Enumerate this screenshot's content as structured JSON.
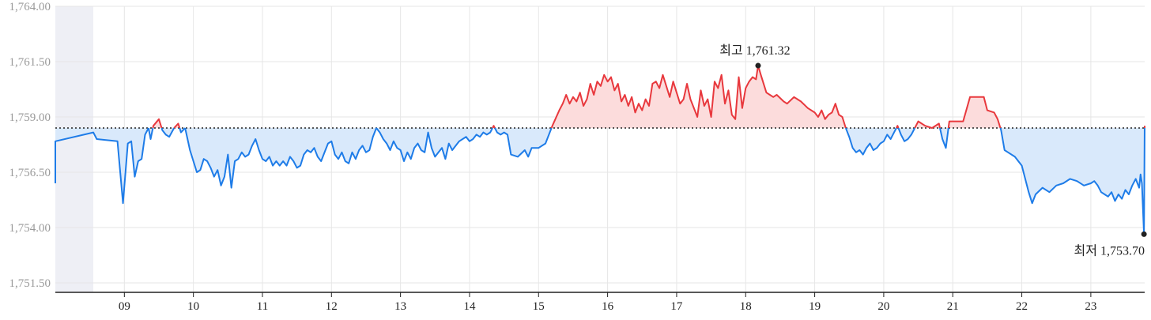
{
  "chart_data": {
    "type": "line",
    "title": "",
    "xlabel": "",
    "ylabel": "",
    "ylim": [
      1751.5,
      1764.0
    ],
    "y_ticks": [
      1764.0,
      1761.5,
      1759.0,
      1756.5,
      1754.0,
      1751.5
    ],
    "y_tick_labels": [
      "1,764.00",
      "1,761.50",
      "1,759.00",
      "1,756.50",
      "1,754.00",
      "1,751.50"
    ],
    "x_ticks": [
      "09",
      "10",
      "11",
      "12",
      "13",
      "14",
      "15",
      "16",
      "17",
      "18",
      "19",
      "20",
      "21",
      "22",
      "23"
    ],
    "grid": true,
    "baseline": 1758.5,
    "colors": {
      "above": "#e8383d",
      "below": "#1e7ce8",
      "above_fill": "#fcdcdc",
      "below_fill": "#d9e9fb",
      "pre_market_shade": "#eeeff5"
    },
    "annotations": {
      "high": {
        "label": "최고 1,761.32",
        "x": 18.18,
        "y": 1761.32
      },
      "low": {
        "label": "최저 1,753.70",
        "x": 23.77,
        "y": 1753.7
      }
    },
    "series": [
      {
        "values": [
          [
            8.0,
            1756.0
          ],
          [
            8.0,
            1757.9
          ],
          [
            8.55,
            1758.3
          ],
          [
            8.6,
            1758.0
          ],
          [
            8.9,
            1757.9
          ],
          [
            8.98,
            1755.1
          ],
          [
            9.05,
            1757.8
          ],
          [
            9.1,
            1757.9
          ],
          [
            9.15,
            1756.3
          ],
          [
            9.2,
            1757.0
          ],
          [
            9.25,
            1757.1
          ],
          [
            9.3,
            1758.2
          ],
          [
            9.35,
            1758.5
          ],
          [
            9.38,
            1758.0
          ],
          [
            9.42,
            1758.6
          ],
          [
            9.5,
            1758.9
          ],
          [
            9.55,
            1758.4
          ],
          [
            9.6,
            1758.2
          ],
          [
            9.65,
            1758.1
          ],
          [
            9.72,
            1758.5
          ],
          [
            9.78,
            1758.7
          ],
          [
            9.82,
            1758.3
          ],
          [
            9.88,
            1758.5
          ],
          [
            9.95,
            1757.5
          ],
          [
            10.0,
            1757.0
          ],
          [
            10.05,
            1756.5
          ],
          [
            10.1,
            1756.6
          ],
          [
            10.15,
            1757.1
          ],
          [
            10.2,
            1757.0
          ],
          [
            10.25,
            1756.7
          ],
          [
            10.3,
            1756.3
          ],
          [
            10.35,
            1756.6
          ],
          [
            10.4,
            1755.9
          ],
          [
            10.45,
            1756.3
          ],
          [
            10.5,
            1757.3
          ],
          [
            10.55,
            1755.8
          ],
          [
            10.6,
            1757.0
          ],
          [
            10.65,
            1757.1
          ],
          [
            10.7,
            1757.4
          ],
          [
            10.75,
            1757.2
          ],
          [
            10.8,
            1757.3
          ],
          [
            10.85,
            1757.7
          ],
          [
            10.9,
            1758.0
          ],
          [
            10.95,
            1757.5
          ],
          [
            11.0,
            1757.1
          ],
          [
            11.05,
            1757.0
          ],
          [
            11.1,
            1757.2
          ],
          [
            11.15,
            1756.8
          ],
          [
            11.2,
            1757.0
          ],
          [
            11.25,
            1756.8
          ],
          [
            11.3,
            1757.0
          ],
          [
            11.35,
            1756.8
          ],
          [
            11.4,
            1757.2
          ],
          [
            11.45,
            1757.0
          ],
          [
            11.5,
            1756.7
          ],
          [
            11.55,
            1756.8
          ],
          [
            11.6,
            1757.3
          ],
          [
            11.65,
            1757.5
          ],
          [
            11.7,
            1757.4
          ],
          [
            11.75,
            1757.6
          ],
          [
            11.8,
            1757.2
          ],
          [
            11.85,
            1757.0
          ],
          [
            11.9,
            1757.4
          ],
          [
            11.95,
            1757.8
          ],
          [
            12.0,
            1757.9
          ],
          [
            12.05,
            1757.3
          ],
          [
            12.1,
            1757.1
          ],
          [
            12.15,
            1757.4
          ],
          [
            12.2,
            1757.0
          ],
          [
            12.25,
            1756.9
          ],
          [
            12.3,
            1757.4
          ],
          [
            12.35,
            1757.1
          ],
          [
            12.4,
            1757.5
          ],
          [
            12.45,
            1757.7
          ],
          [
            12.5,
            1757.4
          ],
          [
            12.55,
            1757.5
          ],
          [
            12.6,
            1758.1
          ],
          [
            12.65,
            1758.5
          ],
          [
            12.7,
            1758.3
          ],
          [
            12.75,
            1758.0
          ],
          [
            12.8,
            1757.8
          ],
          [
            12.85,
            1757.5
          ],
          [
            12.9,
            1757.9
          ],
          [
            12.95,
            1757.6
          ],
          [
            13.0,
            1757.5
          ],
          [
            13.05,
            1757.0
          ],
          [
            13.1,
            1757.4
          ],
          [
            13.15,
            1757.1
          ],
          [
            13.2,
            1757.6
          ],
          [
            13.25,
            1757.8
          ],
          [
            13.3,
            1757.5
          ],
          [
            13.35,
            1757.4
          ],
          [
            13.4,
            1758.3
          ],
          [
            13.45,
            1757.6
          ],
          [
            13.5,
            1757.2
          ],
          [
            13.55,
            1757.4
          ],
          [
            13.6,
            1757.6
          ],
          [
            13.65,
            1757.1
          ],
          [
            13.7,
            1757.8
          ],
          [
            13.75,
            1757.5
          ],
          [
            13.8,
            1757.7
          ],
          [
            13.85,
            1757.9
          ],
          [
            13.9,
            1758.0
          ],
          [
            13.95,
            1758.1
          ],
          [
            14.0,
            1757.9
          ],
          [
            14.05,
            1758.0
          ],
          [
            14.1,
            1758.2
          ],
          [
            14.15,
            1758.1
          ],
          [
            14.2,
            1758.3
          ],
          [
            14.25,
            1758.2
          ],
          [
            14.3,
            1758.3
          ],
          [
            14.35,
            1758.6
          ],
          [
            14.4,
            1758.3
          ],
          [
            14.45,
            1758.2
          ],
          [
            14.5,
            1758.3
          ],
          [
            14.55,
            1758.2
          ],
          [
            14.6,
            1757.3
          ],
          [
            14.7,
            1757.2
          ],
          [
            14.8,
            1757.5
          ],
          [
            14.85,
            1757.2
          ],
          [
            14.9,
            1757.6
          ],
          [
            15.0,
            1757.6
          ],
          [
            15.1,
            1757.8
          ],
          [
            15.15,
            1758.2
          ],
          [
            15.2,
            1758.6
          ],
          [
            15.3,
            1759.3
          ],
          [
            15.35,
            1759.6
          ],
          [
            15.4,
            1760.0
          ],
          [
            15.45,
            1759.6
          ],
          [
            15.5,
            1759.9
          ],
          [
            15.55,
            1759.7
          ],
          [
            15.6,
            1760.1
          ],
          [
            15.65,
            1759.5
          ],
          [
            15.7,
            1759.8
          ],
          [
            15.75,
            1760.5
          ],
          [
            15.8,
            1760.0
          ],
          [
            15.85,
            1760.6
          ],
          [
            15.9,
            1760.4
          ],
          [
            15.95,
            1760.9
          ],
          [
            16.0,
            1760.6
          ],
          [
            16.05,
            1760.8
          ],
          [
            16.1,
            1760.2
          ],
          [
            16.15,
            1760.5
          ],
          [
            16.2,
            1759.7
          ],
          [
            16.25,
            1760.0
          ],
          [
            16.3,
            1759.5
          ],
          [
            16.35,
            1759.9
          ],
          [
            16.4,
            1759.2
          ],
          [
            16.45,
            1759.6
          ],
          [
            16.5,
            1759.3
          ],
          [
            16.55,
            1759.8
          ],
          [
            16.6,
            1759.5
          ],
          [
            16.65,
            1760.5
          ],
          [
            16.7,
            1760.6
          ],
          [
            16.75,
            1760.3
          ],
          [
            16.8,
            1760.9
          ],
          [
            16.85,
            1760.4
          ],
          [
            16.9,
            1759.9
          ],
          [
            16.95,
            1760.6
          ],
          [
            17.0,
            1760.1
          ],
          [
            17.05,
            1759.6
          ],
          [
            17.1,
            1759.8
          ],
          [
            17.15,
            1760.5
          ],
          [
            17.2,
            1759.8
          ],
          [
            17.25,
            1759.4
          ],
          [
            17.3,
            1759.0
          ],
          [
            17.35,
            1760.2
          ],
          [
            17.4,
            1759.5
          ],
          [
            17.45,
            1759.8
          ],
          [
            17.5,
            1759.0
          ],
          [
            17.55,
            1760.6
          ],
          [
            17.6,
            1760.3
          ],
          [
            17.65,
            1760.9
          ],
          [
            17.7,
            1759.6
          ],
          [
            17.75,
            1760.2
          ],
          [
            17.8,
            1759.1
          ],
          [
            17.85,
            1758.9
          ],
          [
            17.9,
            1760.8
          ],
          [
            17.95,
            1759.4
          ],
          [
            18.0,
            1760.3
          ],
          [
            18.05,
            1760.6
          ],
          [
            18.1,
            1760.8
          ],
          [
            18.15,
            1760.7
          ],
          [
            18.18,
            1761.32
          ],
          [
            18.22,
            1760.9
          ],
          [
            18.3,
            1760.1
          ],
          [
            18.35,
            1760.0
          ],
          [
            18.4,
            1759.9
          ],
          [
            18.45,
            1760.0
          ],
          [
            18.55,
            1759.7
          ],
          [
            18.6,
            1759.6
          ],
          [
            18.7,
            1759.9
          ],
          [
            18.8,
            1759.7
          ],
          [
            18.9,
            1759.4
          ],
          [
            19.0,
            1759.2
          ],
          [
            19.05,
            1759.0
          ],
          [
            19.1,
            1759.3
          ],
          [
            19.15,
            1758.9
          ],
          [
            19.2,
            1759.1
          ],
          [
            19.25,
            1759.2
          ],
          [
            19.3,
            1759.6
          ],
          [
            19.35,
            1759.1
          ],
          [
            19.4,
            1759.0
          ],
          [
            19.45,
            1758.5
          ],
          [
            19.5,
            1758.1
          ],
          [
            19.55,
            1757.6
          ],
          [
            19.6,
            1757.4
          ],
          [
            19.65,
            1757.5
          ],
          [
            19.7,
            1757.3
          ],
          [
            19.75,
            1757.6
          ],
          [
            19.8,
            1757.8
          ],
          [
            19.85,
            1757.5
          ],
          [
            19.9,
            1757.6
          ],
          [
            19.95,
            1757.8
          ],
          [
            20.0,
            1757.9
          ],
          [
            20.05,
            1758.2
          ],
          [
            20.1,
            1758.0
          ],
          [
            20.15,
            1758.3
          ],
          [
            20.2,
            1758.6
          ],
          [
            20.25,
            1758.2
          ],
          [
            20.3,
            1757.9
          ],
          [
            20.35,
            1758.0
          ],
          [
            20.4,
            1758.2
          ],
          [
            20.45,
            1758.5
          ],
          [
            20.5,
            1758.8
          ],
          [
            20.6,
            1758.6
          ],
          [
            20.7,
            1758.5
          ],
          [
            20.8,
            1758.7
          ],
          [
            20.85,
            1758.0
          ],
          [
            20.9,
            1757.6
          ],
          [
            20.95,
            1758.8
          ],
          [
            21.0,
            1758.8
          ],
          [
            21.15,
            1758.8
          ],
          [
            21.25,
            1759.9
          ],
          [
            21.35,
            1759.9
          ],
          [
            21.45,
            1759.9
          ],
          [
            21.5,
            1759.3
          ],
          [
            21.6,
            1759.2
          ],
          [
            21.65,
            1758.9
          ],
          [
            21.7,
            1758.4
          ],
          [
            21.75,
            1757.5
          ],
          [
            21.8,
            1757.4
          ],
          [
            21.9,
            1757.2
          ],
          [
            22.0,
            1756.8
          ],
          [
            22.1,
            1755.6
          ],
          [
            22.15,
            1755.1
          ],
          [
            22.2,
            1755.5
          ],
          [
            22.3,
            1755.8
          ],
          [
            22.4,
            1755.6
          ],
          [
            22.5,
            1755.9
          ],
          [
            22.6,
            1756.0
          ],
          [
            22.7,
            1756.2
          ],
          [
            22.8,
            1756.1
          ],
          [
            22.9,
            1755.9
          ],
          [
            23.0,
            1756.0
          ],
          [
            23.05,
            1756.1
          ],
          [
            23.1,
            1755.9
          ],
          [
            23.15,
            1755.6
          ],
          [
            23.2,
            1755.5
          ],
          [
            23.25,
            1755.4
          ],
          [
            23.3,
            1755.6
          ],
          [
            23.35,
            1755.2
          ],
          [
            23.4,
            1755.5
          ],
          [
            23.45,
            1755.3
          ],
          [
            23.5,
            1755.7
          ],
          [
            23.55,
            1755.5
          ],
          [
            23.6,
            1755.9
          ],
          [
            23.65,
            1756.2
          ],
          [
            23.7,
            1755.8
          ],
          [
            23.72,
            1756.4
          ],
          [
            23.74,
            1756.0
          ],
          [
            23.77,
            1753.7
          ],
          [
            23.78,
            1758.6
          ]
        ]
      }
    ]
  }
}
